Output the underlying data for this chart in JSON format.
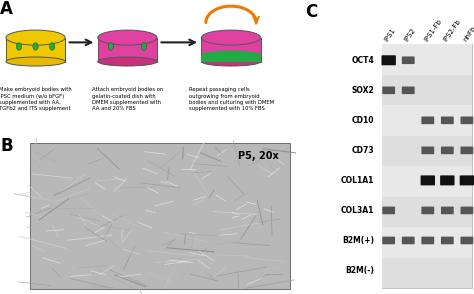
{
  "panel_A_label": "A",
  "panel_B_label": "B",
  "panel_C_label": "C",
  "dish1_caption": "Make embryoid bodies with\niPSC medium (w/o bFGF)\nsupplemented with AA,\nTGFb2 and ITS supplement",
  "dish2_caption": "Attach embryoid bodies on\ngelatin-coated dish with\nDMEM supplemented with\nAA and 20% FBS",
  "dish3_caption": "Repeat passaging cells\noutgrowing from embryoid\nbodies and culturing with DMEM\nsupplemented with 10% FBS",
  "panel_B_text": "P5, 20x",
  "col_labels": [
    "iPS1",
    "iPS2",
    "iPS1-Fb",
    "iPS2-Fb",
    "nhFb"
  ],
  "row_labels": [
    "OCT4",
    "SOX2",
    "CD10",
    "CD73",
    "COL1A1",
    "COL3A1",
    "B2M(+)",
    "B2M(-)"
  ],
  "band_data": {
    "OCT4": [
      2,
      1,
      0,
      0,
      0
    ],
    "SOX2": [
      1,
      1,
      0,
      0,
      0
    ],
    "CD10": [
      0,
      0,
      1,
      1,
      1
    ],
    "CD73": [
      0,
      0,
      1,
      1,
      1
    ],
    "COL1A1": [
      0,
      0,
      2,
      2,
      2
    ],
    "COL3A1": [
      1,
      0,
      1,
      1,
      1
    ],
    "B2M(+)": [
      1,
      1,
      1,
      1,
      1
    ],
    "B2M(-)": [
      0,
      0,
      0,
      0,
      0
    ]
  },
  "white": "#ffffff",
  "dish_yellow": "#f0c800",
  "dish_yellow_body": "#e8b800",
  "dish_pink": "#e040a0",
  "dish_pink_body": "#c83080",
  "dish_green": "#22aa44",
  "dish_outline": "#555555",
  "arrow_color": "#222222",
  "orange_arrow": "#f07800",
  "band_dark": "#111111",
  "band_medium": "#555555",
  "band_light": "#999999",
  "gel_bg_light": "#ebebeb",
  "gel_bg_dark": "#d8d8d8",
  "caption_fontsize": 3.8,
  "panel_label_fontsize": 12
}
